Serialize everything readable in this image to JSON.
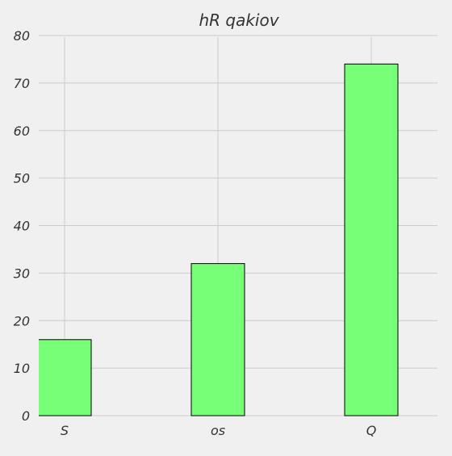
{
  "chart_data": {
    "type": "bar",
    "title": "hR qakiov",
    "xlabel": "",
    "ylabel": "",
    "categories": [
      "S",
      "os",
      "Q"
    ],
    "values": [
      16,
      32,
      74
    ],
    "ylim": [
      0,
      80
    ],
    "yticks": [
      0,
      10,
      20,
      30,
      40,
      50,
      60,
      70,
      80
    ],
    "grid": true,
    "colors": {
      "bar": "#77ff77",
      "bar_edge": "#000000",
      "background": "#f0f0f0",
      "grid": "#cbcbcb"
    }
  }
}
